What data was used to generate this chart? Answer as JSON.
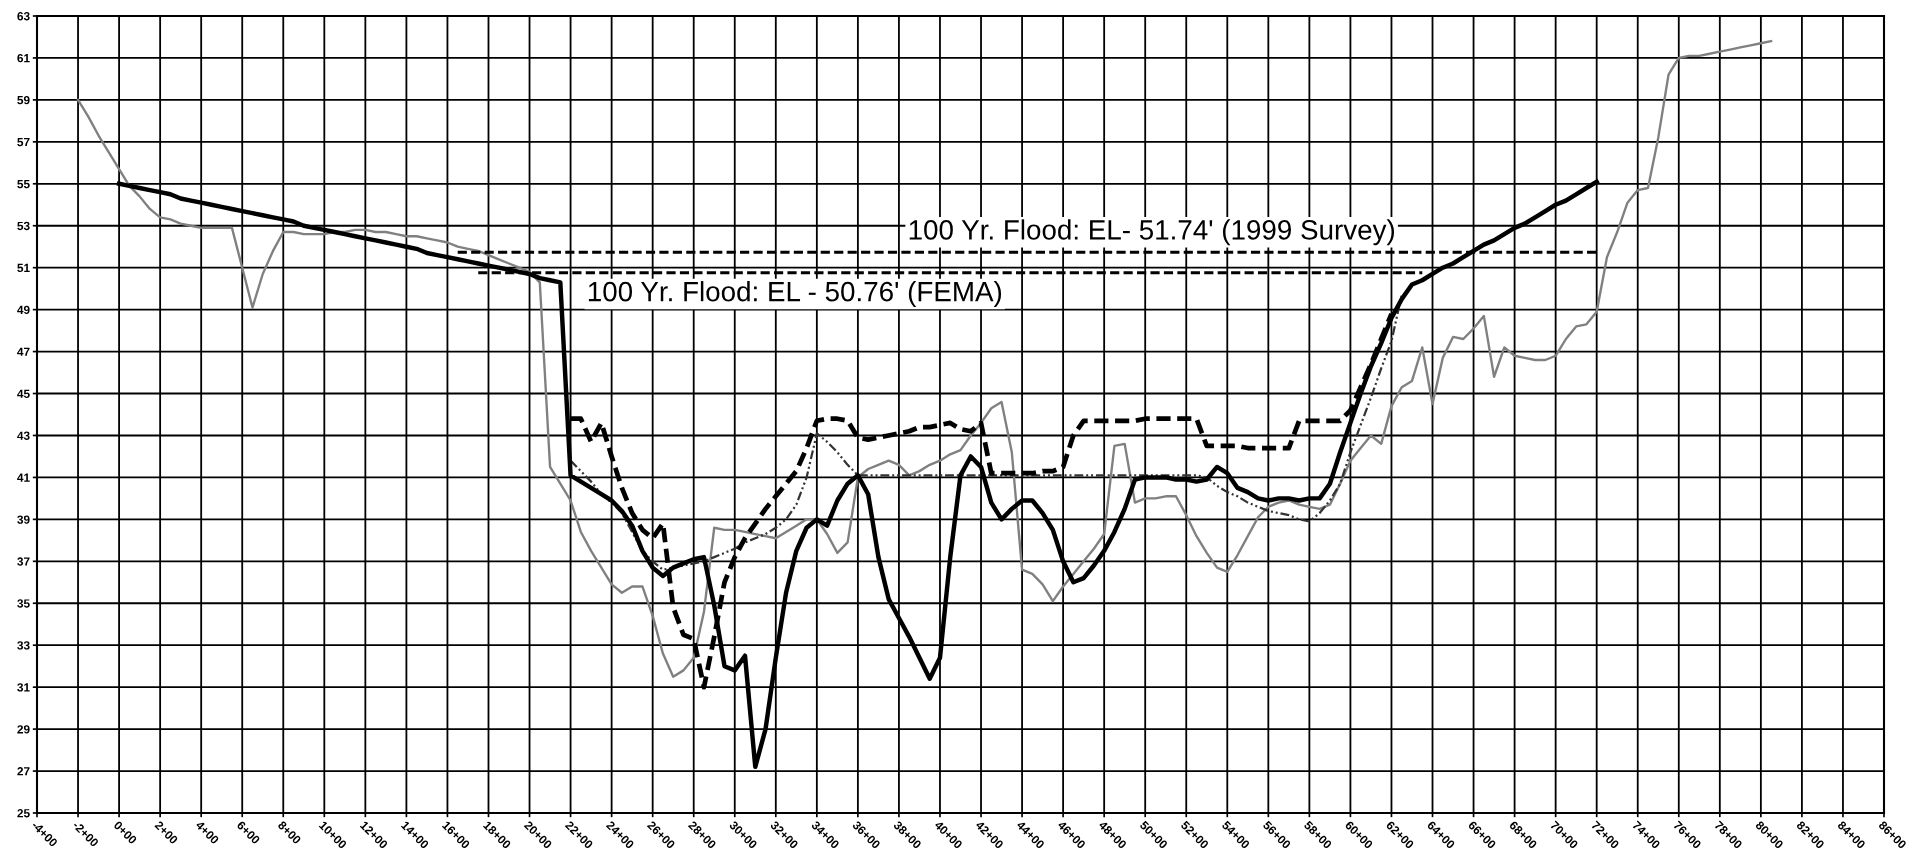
{
  "chart_data": {
    "type": "line",
    "categories": [
      "-4+00",
      null,
      null,
      null,
      "-2+00",
      null,
      null,
      null,
      "0+00",
      null,
      null,
      null,
      "2+00",
      null,
      null,
      null,
      "4+00",
      null,
      null,
      null,
      "6+00",
      null,
      null,
      null,
      "8+00",
      null,
      null,
      null,
      "10+00",
      null,
      null,
      null,
      "12+00",
      null,
      null,
      null,
      "14+00",
      null,
      null,
      null,
      "16+00",
      null,
      null,
      null,
      "18+00",
      null,
      null,
      null,
      "20+00",
      null,
      null,
      null,
      "22+00",
      null,
      null,
      null,
      "24+00",
      null,
      null,
      null,
      "26+00",
      null,
      null,
      null,
      "28+00",
      null,
      null,
      null,
      "30+00",
      null,
      null,
      null,
      "32+00",
      null,
      null,
      null,
      "34+00",
      null,
      null,
      null,
      "36+00",
      null,
      null,
      null,
      "38+00",
      null,
      null,
      null,
      "40+00",
      null,
      null,
      null,
      "42+00",
      null,
      null,
      null,
      "44+00",
      null,
      null,
      null,
      "46+00",
      null,
      null,
      null,
      "48+00",
      null,
      null,
      null,
      "50+00",
      null,
      null,
      null,
      "52+00",
      null,
      null,
      null,
      "54+00",
      null,
      null,
      null,
      "56+00",
      null,
      null,
      null,
      "58+00",
      null,
      null,
      null,
      "60+00",
      null,
      null,
      null,
      "62+00",
      null,
      null,
      null,
      "64+00",
      null,
      null,
      null,
      "66+00",
      null,
      null,
      null,
      "68+00",
      null,
      null,
      null,
      "70+00",
      null,
      null,
      null,
      "72+00",
      null,
      null,
      null,
      "74+00",
      null,
      null,
      null,
      "76+00",
      null,
      null,
      null,
      "78+00",
      null,
      null,
      null,
      "80+00",
      null,
      null,
      null,
      "82+00",
      null,
      null,
      null,
      "84+00",
      null,
      null,
      null,
      "86+00"
    ],
    "series": [
      {
        "color": "#808080",
        "line_style": "solid",
        "values": [
          null,
          null,
          null,
          null,
          59.0,
          58.2,
          57.3,
          56.5,
          55.7,
          54.9,
          54.4,
          53.8,
          53.4,
          53.3,
          53.1,
          53.0,
          52.9,
          52.9,
          52.9,
          52.9,
          51.0,
          49.1,
          50.7,
          51.8,
          52.7,
          52.7,
          52.6,
          52.6,
          52.6,
          52.7,
          52.7,
          52.8,
          52.8,
          52.7,
          52.7,
          52.6,
          52.5,
          52.5,
          52.4,
          52.3,
          52.2,
          52.0,
          51.9,
          51.8,
          51.6,
          51.4,
          51.2,
          51.0,
          50.8,
          50.3,
          41.5,
          40.7,
          39.9,
          38.4,
          37.5,
          36.7,
          35.9,
          35.5,
          35.8,
          35.8,
          34.4,
          32.6,
          31.5,
          31.8,
          32.4,
          34.6,
          38.6,
          38.5,
          38.5,
          38.4,
          38.3,
          38.2,
          38.1,
          38.4,
          38.7,
          39.0,
          39.0,
          38.3,
          37.4,
          37.9,
          41.0,
          41.4,
          41.6,
          41.8,
          41.6,
          41.1,
          41.3,
          41.6,
          41.8,
          42.1,
          42.3,
          43.0,
          43.6,
          44.3,
          44.6,
          42.2,
          36.6,
          36.4,
          35.9,
          35.1,
          35.8,
          36.4,
          37.0,
          37.6,
          38.3,
          42.5,
          42.6,
          39.8,
          40.0,
          40.0,
          40.1,
          40.1,
          39.2,
          38.2,
          37.4,
          36.7,
          36.5,
          37.3,
          38.2,
          39.1,
          39.6,
          39.8,
          39.9,
          39.7,
          39.6,
          39.5,
          39.7,
          40.7,
          41.8,
          42.4,
          43.0,
          42.6,
          44.4,
          45.3,
          45.6,
          47.2,
          44.5,
          46.7,
          47.7,
          47.6,
          48.1,
          48.7,
          45.8,
          47.2,
          46.8,
          46.7,
          46.6,
          46.6,
          46.8,
          47.6,
          48.2,
          48.3,
          48.9,
          51.5,
          52.7,
          54.1,
          54.7,
          54.8,
          57.2,
          60.2,
          61.0,
          61.1,
          61.1,
          61.2,
          61.3,
          61.4,
          61.5,
          61.6,
          61.7,
          61.8,
          null,
          null,
          null,
          null,
          null,
          null,
          null,
          null,
          null,
          null,
          null
        ]
      },
      {
        "color": "#333333",
        "line_style": "dotted",
        "values": [
          null,
          null,
          null,
          null,
          null,
          null,
          null,
          null,
          null,
          null,
          null,
          null,
          null,
          null,
          null,
          null,
          null,
          null,
          null,
          null,
          null,
          null,
          null,
          null,
          null,
          null,
          null,
          null,
          null,
          null,
          null,
          null,
          null,
          null,
          null,
          null,
          null,
          null,
          null,
          null,
          null,
          null,
          null,
          null,
          null,
          null,
          null,
          null,
          null,
          null,
          null,
          null,
          41.8,
          41.3,
          40.8,
          40.2,
          39.8,
          39.3,
          38.4,
          37.5,
          37.0,
          36.6,
          36.7,
          36.8,
          36.9,
          37.0,
          37.2,
          37.4,
          37.6,
          37.9,
          38.1,
          38.3,
          38.6,
          39.0,
          39.7,
          41.0,
          43.1,
          42.7,
          42.2,
          41.6,
          41.1,
          41.1,
          41.1,
          41.1,
          41.1,
          41.1,
          41.1,
          41.1,
          41.1,
          41.1,
          41.1,
          41.1,
          41.1,
          41.1,
          41.1,
          41.1,
          41.1,
          41.1,
          41.1,
          41.1,
          41.1,
          41.1,
          41.1,
          41.1,
          41.1,
          41.1,
          41.1,
          41.1,
          41.1,
          41.1,
          41.1,
          41.1,
          41.1,
          41.1,
          41.0,
          40.6,
          40.3,
          40.1,
          39.8,
          39.6,
          39.4,
          39.3,
          39.2,
          39.0,
          38.9,
          39.3,
          39.9,
          40.7,
          42.2,
          43.5,
          44.8,
          46.2,
          47.5,
          49.7,
          null,
          null,
          null,
          null,
          null,
          null,
          null,
          null,
          null,
          null,
          null,
          null,
          null,
          null,
          null,
          null,
          null,
          null,
          null,
          null,
          null,
          null,
          null,
          null,
          null,
          null,
          null,
          null,
          null,
          null,
          null,
          null,
          null,
          null,
          null,
          null,
          null,
          null,
          null,
          null,
          null,
          null,
          null,
          null,
          null,
          null,
          null
        ]
      },
      {
        "color": "#000000",
        "line_style": "dashed",
        "values": [
          null,
          null,
          null,
          null,
          null,
          null,
          null,
          null,
          null,
          null,
          null,
          null,
          null,
          null,
          null,
          null,
          null,
          null,
          null,
          null,
          null,
          null,
          null,
          null,
          null,
          null,
          null,
          null,
          null,
          null,
          null,
          null,
          null,
          null,
          null,
          null,
          null,
          null,
          null,
          null,
          null,
          null,
          null,
          null,
          null,
          null,
          null,
          null,
          null,
          null,
          null,
          null,
          43.8,
          43.8,
          42.7,
          43.6,
          42.0,
          40.5,
          39.3,
          38.5,
          38.1,
          38.8,
          34.8,
          33.5,
          33.3,
          31.0,
          33.4,
          36.0,
          37.2,
          38.1,
          38.8,
          39.5,
          40.1,
          40.7,
          41.3,
          42.4,
          43.7,
          43.8,
          43.8,
          43.7,
          42.9,
          42.8,
          42.9,
          43.0,
          43.1,
          43.2,
          43.4,
          43.4,
          43.5,
          43.6,
          43.3,
          43.2,
          43.6,
          41.2,
          41.2,
          41.2,
          41.2,
          41.2,
          41.3,
          41.3,
          41.5,
          43.0,
          43.7,
          43.7,
          43.7,
          43.7,
          43.7,
          43.7,
          43.8,
          43.8,
          43.8,
          43.8,
          43.8,
          43.8,
          42.5,
          42.5,
          42.5,
          42.5,
          42.4,
          42.4,
          42.4,
          42.4,
          42.4,
          43.7,
          43.7,
          43.7,
          43.7,
          43.7,
          44.2,
          45.3,
          46.4,
          47.6,
          48.8,
          null,
          null,
          null,
          null,
          null,
          null,
          null,
          null,
          null,
          null,
          null,
          null,
          null,
          null,
          null,
          null,
          null,
          null,
          null,
          null,
          null,
          null,
          null,
          null,
          null,
          null,
          null,
          null,
          null,
          null,
          null,
          null,
          null,
          null,
          null,
          null,
          null,
          null,
          null,
          null,
          null,
          null,
          null,
          null,
          null,
          null,
          null,
          null
        ]
      },
      {
        "color": "#000000",
        "line_style": "solid",
        "values": [
          null,
          null,
          null,
          null,
          null,
          null,
          null,
          null,
          55.0,
          54.9,
          54.8,
          54.7,
          54.6,
          54.5,
          54.3,
          54.2,
          54.1,
          54.0,
          53.9,
          53.8,
          53.7,
          53.6,
          53.5,
          53.4,
          53.3,
          53.2,
          53.0,
          52.9,
          52.8,
          52.7,
          52.6,
          52.5,
          52.4,
          52.3,
          52.2,
          52.1,
          52.0,
          51.9,
          51.7,
          51.6,
          51.5,
          51.4,
          51.3,
          51.2,
          51.1,
          51.0,
          50.9,
          50.8,
          50.7,
          50.5,
          50.4,
          50.3,
          41.1,
          40.8,
          40.5,
          40.2,
          39.9,
          39.4,
          38.7,
          37.5,
          36.7,
          36.3,
          36.7,
          36.9,
          37.1,
          37.2,
          34.9,
          32.0,
          31.8,
          32.5,
          27.2,
          29.0,
          32.4,
          35.5,
          37.5,
          38.6,
          39.0,
          38.7,
          39.9,
          40.7,
          41.1,
          40.2,
          37.2,
          35.2,
          34.3,
          33.4,
          32.4,
          31.4,
          32.4,
          37.2,
          41.1,
          42.0,
          41.5,
          39.8,
          39.0,
          39.5,
          39.9,
          39.9,
          39.3,
          38.5,
          37.0,
          36.0,
          36.2,
          36.8,
          37.5,
          38.4,
          39.5,
          40.9,
          41.0,
          41.0,
          41.0,
          40.9,
          40.9,
          40.8,
          40.9,
          41.5,
          41.2,
          40.5,
          40.3,
          40.0,
          39.9,
          40.0,
          40.0,
          39.9,
          40.0,
          40.0,
          40.7,
          42.2,
          43.6,
          45.0,
          46.3,
          47.4,
          48.6,
          49.5,
          50.2,
          50.4,
          50.7,
          51.0,
          51.2,
          51.5,
          51.8,
          52.1,
          52.3,
          52.6,
          52.9,
          53.1,
          53.4,
          53.7,
          54.0,
          54.2,
          54.5,
          54.8,
          55.1,
          null,
          null,
          null,
          null,
          null,
          null,
          null,
          null,
          null,
          null,
          null,
          null,
          null,
          null,
          null,
          null,
          null,
          null,
          null,
          null,
          null,
          null,
          null,
          null,
          null,
          null,
          null,
          null
        ]
      },
      {
        "name": "100 Yr. Flood: EL- 51.74' (1999 Survey)",
        "color": "#000000",
        "line_style": "dashed",
        "values": [
          null,
          null,
          null,
          null,
          null,
          null,
          null,
          null,
          null,
          null,
          null,
          null,
          null,
          null,
          null,
          null,
          null,
          null,
          null,
          null,
          null,
          null,
          null,
          null,
          null,
          null,
          null,
          null,
          null,
          null,
          null,
          null,
          null,
          null,
          null,
          null,
          null,
          null,
          null,
          null,
          null,
          51.74,
          51.74,
          51.74,
          51.74,
          51.74,
          51.74,
          51.74,
          51.74,
          51.74,
          51.74,
          51.74,
          51.74,
          51.74,
          51.74,
          51.74,
          51.74,
          51.74,
          51.74,
          51.74,
          51.74,
          51.74,
          51.74,
          51.74,
          51.74,
          51.74,
          51.74,
          51.74,
          51.74,
          51.74,
          51.74,
          51.74,
          51.74,
          51.74,
          51.74,
          51.74,
          51.74,
          51.74,
          51.74,
          51.74,
          51.74,
          51.74,
          51.74,
          51.74,
          51.74,
          51.74,
          51.74,
          51.74,
          51.74,
          51.74,
          51.74,
          51.74,
          51.74,
          51.74,
          51.74,
          51.74,
          51.74,
          51.74,
          51.74,
          51.74,
          51.74,
          51.74,
          51.74,
          51.74,
          51.74,
          51.74,
          51.74,
          51.74,
          51.74,
          51.74,
          51.74,
          51.74,
          51.74,
          51.74,
          51.74,
          51.74,
          51.74,
          51.74,
          51.74,
          51.74,
          51.74,
          51.74,
          51.74,
          51.74,
          51.74,
          51.74,
          51.74,
          51.74,
          51.74,
          51.74,
          51.74,
          51.74,
          51.74,
          51.74,
          51.74,
          51.74,
          51.74,
          51.74,
          51.74,
          51.74,
          51.74,
          51.74,
          51.74,
          51.74,
          51.74,
          51.74,
          51.74,
          51.74,
          51.74,
          51.74,
          51.74,
          51.74,
          51.74,
          null,
          null,
          null,
          null,
          null,
          null,
          null,
          null,
          null,
          null,
          null,
          null,
          null,
          null,
          null,
          null,
          null,
          null,
          null,
          null,
          null,
          null,
          null,
          null,
          null,
          null,
          null,
          null
        ]
      },
      {
        "name": "100 Yr. Flood: EL - 50.76' (FEMA)",
        "color": "#000000",
        "line_style": "dashed",
        "values": [
          null,
          null,
          null,
          null,
          null,
          null,
          null,
          null,
          null,
          null,
          null,
          null,
          null,
          null,
          null,
          null,
          null,
          null,
          null,
          null,
          null,
          null,
          null,
          null,
          null,
          null,
          null,
          null,
          null,
          null,
          null,
          null,
          null,
          null,
          null,
          null,
          null,
          null,
          null,
          null,
          null,
          null,
          null,
          50.76,
          50.76,
          50.76,
          50.76,
          50.76,
          50.76,
          50.76,
          50.76,
          50.76,
          50.76,
          50.76,
          50.76,
          50.76,
          50.76,
          50.76,
          50.76,
          50.76,
          50.76,
          50.76,
          50.76,
          50.76,
          50.76,
          50.76,
          50.76,
          50.76,
          50.76,
          50.76,
          50.76,
          50.76,
          50.76,
          50.76,
          50.76,
          50.76,
          50.76,
          50.76,
          50.76,
          50.76,
          50.76,
          50.76,
          50.76,
          50.76,
          50.76,
          50.76,
          50.76,
          50.76,
          50.76,
          50.76,
          50.76,
          50.76,
          50.76,
          50.76,
          50.76,
          50.76,
          50.76,
          50.76,
          50.76,
          50.76,
          50.76,
          50.76,
          50.76,
          50.76,
          50.76,
          50.76,
          50.76,
          50.76,
          50.76,
          50.76,
          50.76,
          50.76,
          50.76,
          50.76,
          50.76,
          50.76,
          50.76,
          50.76,
          50.76,
          50.76,
          50.76,
          50.76,
          50.76,
          50.76,
          50.76,
          50.76,
          50.76,
          50.76,
          50.76,
          50.76,
          50.76,
          50.76,
          50.76,
          50.76,
          50.76,
          50.76,
          null,
          null,
          null,
          null,
          null,
          null,
          null,
          null,
          null,
          null,
          null,
          null,
          null,
          null,
          null,
          null,
          null,
          null,
          null,
          null,
          null,
          null,
          null,
          null,
          null,
          null,
          null,
          null,
          null,
          null,
          null,
          null,
          null,
          null,
          null,
          null,
          null,
          null,
          null,
          null,
          null,
          null,
          null,
          null,
          null
        ]
      }
    ],
    "ylim": [
      25,
      63
    ],
    "yticks": [
      25,
      27,
      29,
      31,
      33,
      35,
      37,
      39,
      41,
      43,
      45,
      47,
      49,
      51,
      53,
      55,
      57,
      59,
      61,
      63
    ],
    "grid": true
  }
}
